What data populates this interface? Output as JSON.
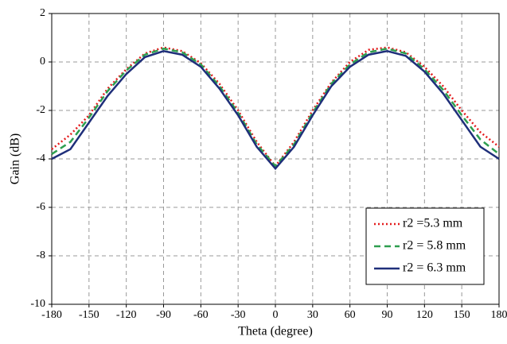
{
  "chart_data": {
    "type": "line",
    "x_label": "Theta (degree)",
    "y_label": "Gain (dB)",
    "x": [
      -180,
      -165,
      -150,
      -135,
      -120,
      -105,
      -90,
      -75,
      -60,
      -45,
      -30,
      -15,
      0,
      15,
      30,
      45,
      60,
      75,
      90,
      105,
      120,
      135,
      150,
      165,
      180
    ],
    "series": [
      {
        "name": "r2 =5.3 mm",
        "color": "#e31a1c",
        "dash": "dotted",
        "values": [
          -3.6,
          -3.0,
          -2.2,
          -1.1,
          -0.3,
          0.35,
          0.6,
          0.45,
          -0.05,
          -0.9,
          -2.0,
          -3.3,
          -4.3,
          -3.3,
          -2.0,
          -0.85,
          0,
          0.5,
          0.6,
          0.4,
          -0.2,
          -1.0,
          -2.0,
          -2.9,
          -3.5
        ]
      },
      {
        "name": "r2 = 5.8 mm",
        "color": "#2e9e4f",
        "dash": "dashed",
        "values": [
          -3.8,
          -3.3,
          -2.3,
          -1.2,
          -0.35,
          0.3,
          0.55,
          0.4,
          -0.1,
          -1.0,
          -2.1,
          -3.4,
          -4.3,
          -3.4,
          -2.1,
          -0.9,
          -0.1,
          0.4,
          0.55,
          0.35,
          -0.3,
          -1.15,
          -2.2,
          -3.2,
          -3.8
        ]
      },
      {
        "name": "r2 = 6.3 mm",
        "color": "#1f2f7a",
        "dash": "solid",
        "values": [
          -4.0,
          -3.6,
          -2.5,
          -1.4,
          -0.5,
          0.2,
          0.45,
          0.3,
          -0.2,
          -1.1,
          -2.2,
          -3.5,
          -4.4,
          -3.5,
          -2.2,
          -1.0,
          -0.2,
          0.3,
          0.45,
          0.25,
          -0.4,
          -1.3,
          -2.4,
          -3.5,
          -4.0
        ]
      }
    ],
    "xlim": [
      -180,
      180
    ],
    "xticks": [
      -180,
      -150,
      -120,
      -90,
      -60,
      -30,
      0,
      30,
      60,
      90,
      120,
      150,
      180
    ],
    "ylim": [
      -10,
      2
    ],
    "yticks": [
      -10,
      -8,
      -6,
      -4,
      -2,
      0,
      2
    ],
    "grid": true,
    "legend": "lower right"
  }
}
